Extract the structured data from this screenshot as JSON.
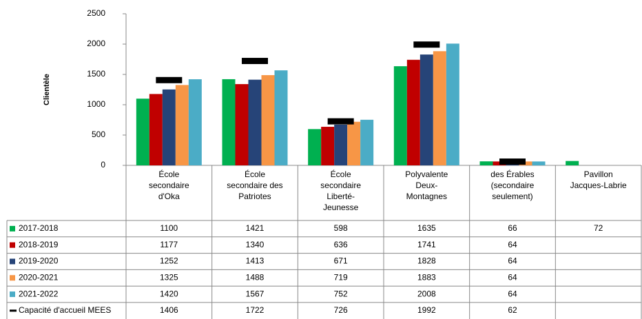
{
  "chart_data": {
    "type": "bar",
    "y_label": "Clientèle",
    "categories": [
      "École secondaire d'Oka",
      "École secondaire des Patriotes",
      "École secondaire Liberté-Jeunesse",
      "Polyvalente Deux-Montagnes",
      "des Érables (secondaire seulement)",
      "Pavillon Jacques-Labrie"
    ],
    "series": [
      {
        "name": "2017-2018",
        "color": "#00b050",
        "values": [
          1100,
          1421,
          598,
          1635,
          66,
          72
        ]
      },
      {
        "name": "2018-2019",
        "color": "#c00000",
        "values": [
          1177,
          1340,
          636,
          1741,
          64,
          null
        ]
      },
      {
        "name": "2019-2020",
        "color": "#264478",
        "values": [
          1252,
          1413,
          671,
          1828,
          64,
          null
        ]
      },
      {
        "name": "2020-2021",
        "color": "#f79646",
        "values": [
          1325,
          1488,
          719,
          1883,
          64,
          null
        ]
      },
      {
        "name": "2021-2022",
        "color": "#4bacc6",
        "values": [
          1420,
          1567,
          752,
          2008,
          64,
          null
        ]
      },
      {
        "name": "Capacité d'accueil MEES",
        "color": "#000000",
        "type": "marker",
        "values": [
          1406,
          1722,
          726,
          1992,
          62,
          null
        ]
      }
    ],
    "ylim": [
      0,
      2500
    ],
    "yticks": [
      0,
      500,
      1000,
      1500,
      2000,
      2500
    ],
    "grid": false,
    "data_table": true
  }
}
